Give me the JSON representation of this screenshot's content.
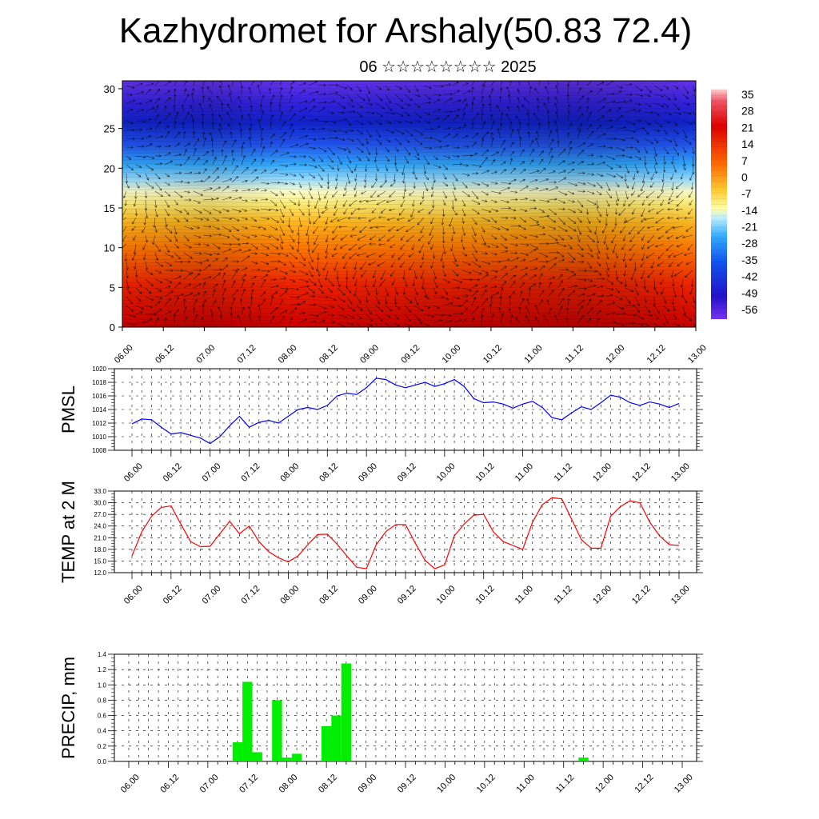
{
  "header": {
    "title": "Kazhydromet for Arshaly(50.83 72.4)",
    "subtitle": "06 ☆☆☆☆☆☆☆☆ 2025"
  },
  "chart_data": [
    {
      "type": "heatmap",
      "title": "",
      "xlabel": "",
      "ylabel": "",
      "x_ticks": [
        "06.00",
        "06.12",
        "07.00",
        "07.12",
        "08.00",
        "08.12",
        "09.00",
        "09.12",
        "10.00",
        "10.12",
        "11.00",
        "11.12",
        "12.00",
        "12.12",
        "13.00"
      ],
      "y_ticks": [
        0,
        5,
        10,
        15,
        20,
        25,
        30
      ],
      "ylim": [
        0,
        31
      ],
      "colorbar": {
        "labels": [
          35,
          28,
          21,
          14,
          7,
          0,
          -7,
          -14,
          -21,
          -28,
          -35,
          -42,
          -49,
          -56
        ],
        "range": [
          -60,
          38
        ]
      },
      "overlay": "wind vectors",
      "colors": {
        "warm": "#cc0000",
        "mid": "#ffee66",
        "cool": "#33aaff",
        "cold": "#2200cc"
      }
    },
    {
      "type": "line",
      "ylabel": "PMSL",
      "ylim": [
        1008,
        1020
      ],
      "y_ticks": [
        1008,
        1010,
        1012,
        1014,
        1016,
        1018,
        1020
      ],
      "x_ticks": [
        "06.00",
        "06.12",
        "07.00",
        "07.12",
        "08.00",
        "08.12",
        "09.00",
        "09.12",
        "10.00",
        "10.12",
        "11.00",
        "11.12",
        "12.00",
        "12.12",
        "13.00"
      ],
      "line_color": "#0000ff",
      "values": [
        1011.9,
        1012.6,
        1012.5,
        1011.4,
        1010.4,
        1010.6,
        1010.2,
        1009.8,
        1009.0,
        1010.0,
        1011.6,
        1013.0,
        1011.4,
        1012.1,
        1012.4,
        1012.0,
        1013.0,
        1014.0,
        1014.3,
        1014.0,
        1014.6,
        1016.0,
        1016.4,
        1016.2,
        1017.2,
        1018.6,
        1018.4,
        1017.6,
        1017.2,
        1017.6,
        1018.0,
        1017.4,
        1017.8,
        1018.4,
        1017.4,
        1015.6,
        1015.0,
        1015.1,
        1014.8,
        1014.2,
        1014.8,
        1015.2,
        1014.3,
        1012.8,
        1012.5,
        1013.5,
        1014.4,
        1014.0,
        1015.0,
        1016.1,
        1015.8,
        1015.0,
        1014.6,
        1015.1,
        1014.8,
        1014.3,
        1014.9
      ]
    },
    {
      "type": "line",
      "ylabel": "TEMP at 2 M",
      "ylim": [
        12.0,
        33.0
      ],
      "y_ticks": [
        "12.0",
        "15.0",
        "18.0",
        "21.0",
        "24.0",
        "27.0",
        "30.0",
        "33.0"
      ],
      "x_ticks": [
        "06.00",
        "06.12",
        "07.00",
        "07.12",
        "08.00",
        "08.12",
        "09.00",
        "09.12",
        "10.00",
        "10.12",
        "11.00",
        "11.12",
        "12.00",
        "12.12",
        "13.00"
      ],
      "line_color": "#ff0000",
      "values": [
        16.3,
        22.5,
        26.5,
        28.8,
        29.2,
        24.5,
        20.0,
        18.7,
        18.8,
        22.0,
        25.2,
        22.0,
        24.0,
        20.0,
        17.4,
        15.8,
        14.8,
        16.3,
        19.2,
        21.8,
        21.9,
        19.3,
        16.3,
        13.4,
        13.0,
        19.2,
        22.6,
        24.4,
        24.4,
        19.6,
        15.2,
        13.0,
        14.0,
        21.5,
        24.5,
        26.8,
        27.0,
        22.5,
        20.0,
        19.0,
        18.0,
        25.0,
        29.5,
        31.3,
        31.0,
        25.8,
        20.5,
        18.3,
        18.3,
        26.5,
        29.0,
        30.5,
        30.0,
        25.0,
        21.5,
        19.2,
        19.0
      ]
    },
    {
      "type": "bar",
      "ylabel": "PRECIP, mm",
      "ylim": [
        0,
        1.4
      ],
      "y_ticks": [
        "0.0",
        "0.2",
        "0.4",
        "0.6",
        "0.8",
        "1.0",
        "1.2",
        "1.4"
      ],
      "x_ticks": [
        "06.00",
        "06.12",
        "07.00",
        "07.12",
        "08.00",
        "08.12",
        "09.00",
        "09.12",
        "10.00",
        "10.12",
        "11.00",
        "11.12",
        "12.00",
        "12.12",
        "13.00"
      ],
      "bar_color": "#00ee00",
      "bars": [
        {
          "x": 10.0,
          "value": 0.01
        },
        {
          "x": 11.0,
          "value": 0.25
        },
        {
          "x": 12.0,
          "value": 1.04
        },
        {
          "x": 13.0,
          "value": 0.12
        },
        {
          "x": 15.0,
          "value": 0.8
        },
        {
          "x": 16.0,
          "value": 0.05
        },
        {
          "x": 17.0,
          "value": 0.1
        },
        {
          "x": 20.0,
          "value": 0.46
        },
        {
          "x": 21.0,
          "value": 0.6
        },
        {
          "x": 22.0,
          "value": 1.28
        },
        {
          "x": 46.0,
          "value": 0.05
        }
      ]
    }
  ]
}
